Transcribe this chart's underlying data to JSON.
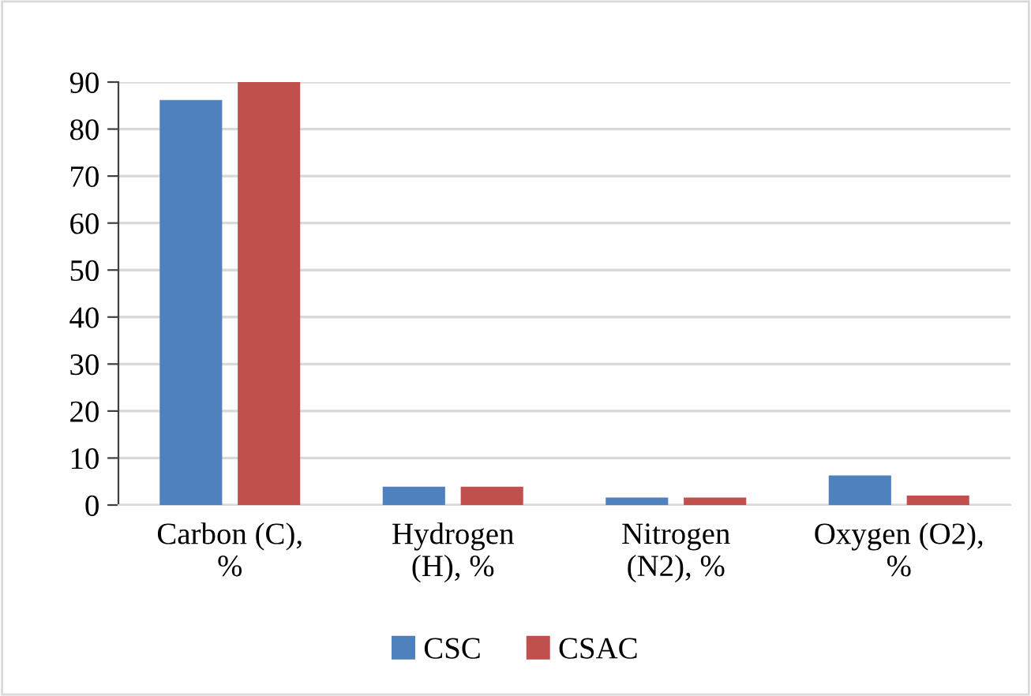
{
  "chart_data": {
    "type": "bar",
    "categories": [
      "Carbon (C),\n%",
      "Hydrogen\n(H), %",
      "Nitrogen\n(N2), %",
      "Oxygen (O2),\n%"
    ],
    "series": [
      {
        "name": "CSC",
        "color": "#4f81bd",
        "values": [
          86.2,
          3.9,
          1.6,
          6.3
        ]
      },
      {
        "name": "CSAC",
        "color": "#c0504d",
        "values": [
          90,
          3.9,
          1.6,
          2.0
        ]
      }
    ],
    "ylim": [
      0,
      90
    ],
    "yticks": [
      0,
      10,
      20,
      30,
      40,
      50,
      60,
      70,
      80,
      90
    ],
    "grid": "y",
    "legend": "bottom"
  }
}
